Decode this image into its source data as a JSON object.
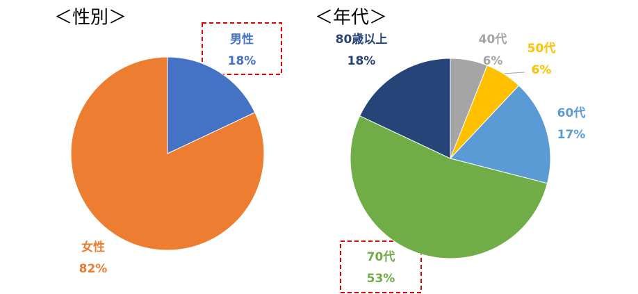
{
  "chart_data": [
    {
      "type": "pie",
      "title": "＜性別＞",
      "categories": [
        "男性",
        "女性"
      ],
      "values": [
        18,
        82
      ],
      "value_labels": [
        "18%",
        "82%"
      ],
      "colors": [
        "#4472c4",
        "#ed7d31"
      ]
    },
    {
      "type": "pie",
      "title": "＜年代＞",
      "categories": [
        "40代",
        "50代",
        "60代",
        "70代",
        "80歳以上"
      ],
      "values": [
        6,
        6,
        17,
        53,
        18
      ],
      "value_labels": [
        "6%",
        "6%",
        "17%",
        "53%",
        "18%"
      ],
      "colors": [
        "#a5a5a5",
        "#ffc000",
        "#5b9bd5",
        "#70ad47",
        "#264478"
      ]
    }
  ]
}
